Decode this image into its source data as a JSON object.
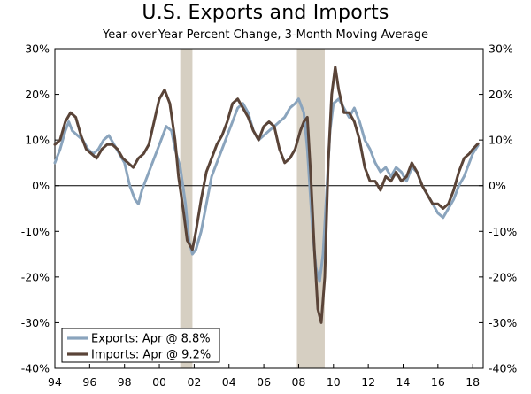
{
  "chart_data": {
    "type": "line",
    "title": "U.S. Exports and Imports",
    "subtitle": "Year-over-Year Percent Change, 3-Month Moving Average",
    "ylim": [
      -40,
      30
    ],
    "y_ticks": [
      30,
      20,
      10,
      0,
      -10,
      -20,
      -30,
      -40
    ],
    "y_tick_labels": [
      "30%",
      "20%",
      "10%",
      "0%",
      "-10%",
      "-20%",
      "-30%",
      "-40%"
    ],
    "x_range": [
      1994,
      2018.6
    ],
    "x_ticks": [
      1994,
      1996,
      1998,
      2000,
      2002,
      2004,
      2006,
      2008,
      2010,
      2012,
      2014,
      2016,
      2018
    ],
    "x_tick_labels": [
      "94",
      "96",
      "98",
      "00",
      "02",
      "04",
      "06",
      "08",
      "10",
      "12",
      "14",
      "16",
      "18"
    ],
    "recessions": [
      [
        2001.2,
        2001.9
      ],
      [
        2007.9,
        2009.5
      ]
    ],
    "colors": {
      "exports": "#8aa4bd",
      "imports": "#5a4438",
      "recession": "#d6cfc2"
    },
    "legend_position": "bottom-left",
    "series": [
      {
        "name": "Exports: Apr @ 8.8%",
        "key": "exports",
        "x": [
          1994.0,
          1994.3,
          1994.6,
          1994.8,
          1995.0,
          1995.3,
          1995.6,
          1995.9,
          1996.2,
          1996.5,
          1996.8,
          1997.1,
          1997.4,
          1997.7,
          1998.0,
          1998.3,
          1998.6,
          1998.8,
          1999.0,
          1999.3,
          1999.6,
          1999.9,
          2000.2,
          2000.4,
          2000.7,
          2000.9,
          2001.2,
          2001.5,
          2001.7,
          2001.9,
          2002.1,
          2002.4,
          2002.7,
          2003.0,
          2003.3,
          2003.6,
          2003.9,
          2004.2,
          2004.5,
          2004.8,
          2005.1,
          2005.4,
          2005.7,
          2006.0,
          2006.3,
          2006.6,
          2006.9,
          2007.2,
          2007.5,
          2007.8,
          2008.0,
          2008.3,
          2008.5,
          2008.8,
          2009.0,
          2009.2,
          2009.4,
          2009.6,
          2009.8,
          2010.0,
          2010.3,
          2010.6,
          2010.9,
          2011.2,
          2011.5,
          2011.8,
          2012.1,
          2012.4,
          2012.7,
          2013.0,
          2013.3,
          2013.6,
          2013.9,
          2014.2,
          2014.5,
          2014.8,
          2015.1,
          2015.4,
          2015.7,
          2016.0,
          2016.3,
          2016.6,
          2016.9,
          2017.2,
          2017.5,
          2017.8,
          2018.0,
          2018.3
        ],
        "values": [
          5,
          8,
          12,
          14,
          12,
          11,
          10,
          8,
          7,
          8,
          10,
          11,
          9,
          7,
          5,
          0,
          -3,
          -4,
          -1,
          2,
          5,
          8,
          11,
          13,
          12,
          8,
          4,
          -4,
          -12,
          -15,
          -14,
          -10,
          -4,
          2,
          5,
          8,
          11,
          14,
          17,
          18,
          16,
          12,
          10,
          11,
          12,
          13,
          14,
          15,
          17,
          18,
          19,
          16,
          8,
          -10,
          -18,
          -21,
          -15,
          -2,
          12,
          18,
          19,
          17,
          15,
          17,
          14,
          10,
          8,
          5,
          3,
          4,
          2,
          4,
          3,
          1,
          4,
          3,
          0,
          -2,
          -4,
          -6,
          -7,
          -5,
          -3,
          0,
          2,
          5,
          7,
          8.8
        ]
      },
      {
        "name": "Imports: Apr @ 9.2%",
        "key": "imports",
        "x": [
          1994.0,
          1994.3,
          1994.6,
          1994.9,
          1995.2,
          1995.5,
          1995.8,
          1996.1,
          1996.4,
          1996.7,
          1997.0,
          1997.3,
          1997.6,
          1997.9,
          1998.2,
          1998.5,
          1998.8,
          1999.1,
          1999.4,
          1999.7,
          2000.0,
          2000.3,
          2000.6,
          2000.9,
          2001.1,
          2001.4,
          2001.6,
          2001.9,
          2002.1,
          2002.4,
          2002.7,
          2003.0,
          2003.3,
          2003.6,
          2003.9,
          2004.2,
          2004.5,
          2004.8,
          2005.1,
          2005.4,
          2005.7,
          2006.0,
          2006.3,
          2006.6,
          2006.9,
          2007.2,
          2007.5,
          2007.8,
          2008.1,
          2008.3,
          2008.5,
          2008.7,
          2008.9,
          2009.1,
          2009.3,
          2009.5,
          2009.7,
          2009.9,
          2010.1,
          2010.3,
          2010.6,
          2010.9,
          2011.2,
          2011.5,
          2011.8,
          2012.1,
          2012.4,
          2012.7,
          2013.0,
          2013.3,
          2013.6,
          2013.9,
          2014.2,
          2014.5,
          2014.8,
          2015.1,
          2015.4,
          2015.7,
          2016.0,
          2016.3,
          2016.6,
          2016.9,
          2017.2,
          2017.5,
          2017.8,
          2018.0,
          2018.3
        ],
        "values": [
          9,
          10,
          14,
          16,
          15,
          11,
          8,
          7,
          6,
          8,
          9,
          9,
          8,
          6,
          5,
          4,
          6,
          7,
          9,
          14,
          19,
          21,
          18,
          10,
          2,
          -6,
          -12,
          -14,
          -10,
          -3,
          3,
          6,
          9,
          11,
          14,
          18,
          19,
          17,
          15,
          12,
          10,
          13,
          14,
          13,
          8,
          5,
          6,
          8,
          12,
          14,
          15,
          2,
          -14,
          -27,
          -30,
          -20,
          5,
          20,
          26,
          21,
          16,
          16,
          14,
          10,
          4,
          1,
          1,
          -1,
          2,
          1,
          3,
          1,
          2,
          5,
          3,
          0,
          -2,
          -4,
          -4,
          -5,
          -4,
          -1,
          3,
          6,
          7,
          8,
          9.2
        ]
      }
    ]
  }
}
